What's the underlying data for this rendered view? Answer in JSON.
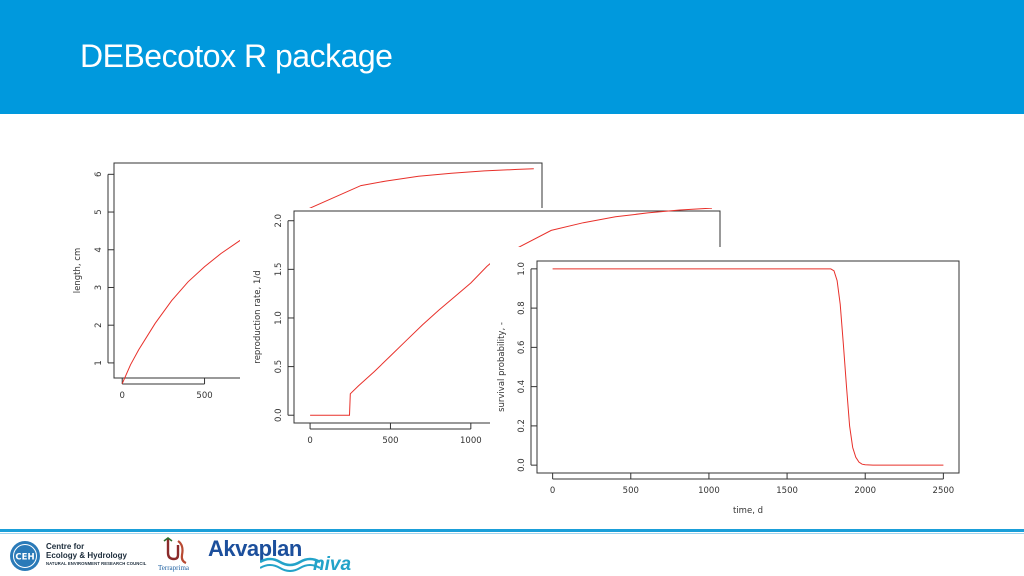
{
  "slide": {
    "title": "DEBecotox R package"
  },
  "chart_data": [
    {
      "type": "line",
      "xlabel": "",
      "ylabel": "length, cm",
      "x_ticks": [
        "0",
        "500"
      ],
      "y_ticks": [
        "1",
        "2",
        "3",
        "4",
        "5",
        "6"
      ],
      "xlim": [
        -50,
        2550
      ],
      "ylim": [
        0.6,
        6.3
      ],
      "series": [
        {
          "color": "#e8302a",
          "x": [
            0,
            50,
            100,
            200,
            300,
            400,
            500,
            600,
            700,
            750,
            1450,
            1600,
            1800,
            2000,
            2200,
            2400,
            2500
          ],
          "y": [
            0.45,
            0.95,
            1.35,
            2.05,
            2.65,
            3.15,
            3.55,
            3.9,
            4.2,
            4.35,
            5.7,
            5.82,
            5.95,
            6.03,
            6.09,
            6.13,
            6.15
          ]
        }
      ]
    },
    {
      "type": "line",
      "xlabel": "",
      "ylabel": "reproduction rate, 1/d",
      "x_ticks": [
        "0",
        "500",
        "1000"
      ],
      "y_ticks": [
        "0.0",
        "0.5",
        "1.0",
        "1.5",
        "2.0"
      ],
      "xlim": [
        -100,
        2550
      ],
      "ylim": [
        -0.08,
        2.1
      ],
      "series": [
        {
          "color": "#e8302a",
          "x": [
            0,
            230,
            245,
            250,
            300,
            400,
            500,
            600,
            700,
            800,
            900,
            1000,
            1100,
            1150,
            1500,
            1700,
            1900,
            2100,
            2300,
            2500
          ],
          "y": [
            0,
            0,
            0.0,
            0.22,
            0.3,
            0.45,
            0.61,
            0.77,
            0.93,
            1.08,
            1.22,
            1.36,
            1.53,
            1.6,
            1.9,
            1.98,
            2.04,
            2.08,
            2.11,
            2.13
          ]
        }
      ]
    },
    {
      "type": "line",
      "xlabel": "time, d",
      "ylabel": "survival probability, -",
      "x_ticks": [
        "0",
        "500",
        "1000",
        "1500",
        "2000",
        "2500"
      ],
      "y_ticks": [
        "0.0",
        "0.2",
        "0.4",
        "0.6",
        "0.8",
        "1.0"
      ],
      "xlim": [
        -100,
        2600
      ],
      "ylim": [
        -0.04,
        1.04
      ],
      "series": [
        {
          "color": "#e8302a",
          "x": [
            0,
            500,
            1000,
            1500,
            1780,
            1800,
            1820,
            1840,
            1860,
            1880,
            1900,
            1920,
            1940,
            1960,
            1980,
            2000,
            2050,
            2100,
            2500
          ],
          "y": [
            1,
            1,
            1,
            1,
            1,
            0.99,
            0.94,
            0.82,
            0.62,
            0.4,
            0.2,
            0.09,
            0.04,
            0.015,
            0.005,
            0.002,
            0,
            0,
            0
          ]
        }
      ]
    }
  ],
  "footer": {
    "ceh_line1": "Centre for",
    "ceh_line2": "Ecology & Hydrology",
    "ceh_line3": "NATURAL ENVIRONMENT RESEARCH COUNCIL",
    "ceh_badge": "CEH",
    "terraprima": "Terraprima",
    "akvaplan": "Akvaplan",
    "niva": "niva",
    "colors": {
      "header": "#0099dd",
      "rule": "#1a9fd9",
      "akvaplan_blue": "#1c4f9c",
      "niva_teal": "#23a3c9"
    }
  }
}
